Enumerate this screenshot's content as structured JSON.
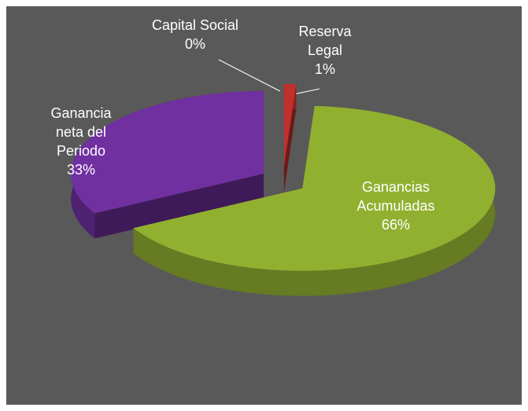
{
  "chart_data": {
    "type": "pie3d",
    "categories": [
      "Capital Social",
      "Reserva Legal",
      "Ganancias Acumuladas",
      "Ganancia neta del Periodo"
    ],
    "values": [
      0,
      1,
      66,
      33
    ],
    "value_labels": [
      "0%",
      "1%",
      "66%",
      "33%"
    ],
    "colors": [
      "#4f81bd",
      "#c0302c",
      "#92b030",
      "#7030a0"
    ],
    "exploded": true
  }
}
